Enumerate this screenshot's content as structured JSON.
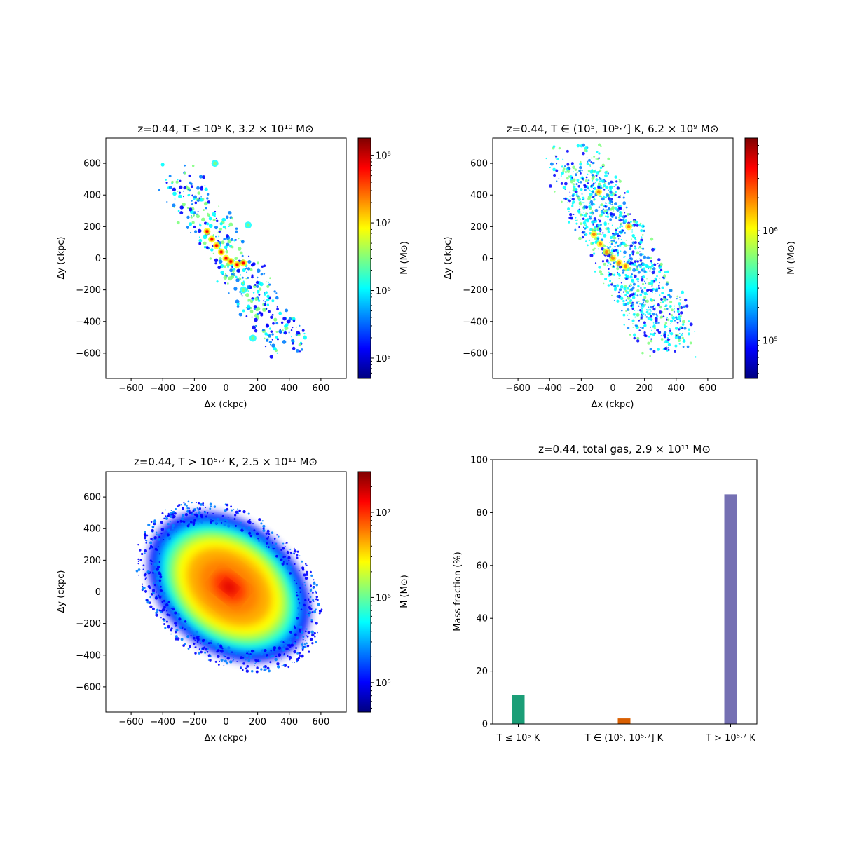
{
  "colors": {
    "jet": [
      "#00007f",
      "#0000ff",
      "#007fff",
      "#00ffff",
      "#7fff7f",
      "#ffff00",
      "#ff7f00",
      "#ff0000",
      "#7f0000"
    ],
    "bars": [
      "#1b9e77",
      "#d95f02",
      "#7570b3"
    ]
  },
  "chart_data": [
    {
      "type": "heatmap",
      "title": "z=0.44, T ≤ 10⁵ K, 3.2 × 10¹⁰ M⊙",
      "xlabel": "Δx (ckpc)",
      "ylabel": "Δy (ckpc)",
      "xlim": [
        -760,
        760
      ],
      "ylim": [
        -760,
        760
      ],
      "xticks": [
        -600,
        -400,
        -200,
        0,
        200,
        400,
        600
      ],
      "yticks": [
        -600,
        -400,
        -200,
        0,
        200,
        400,
        600
      ],
      "colorbar": {
        "label": "M (M⊙)",
        "scale": "log",
        "range": [
          50000,
          180000000
        ],
        "ticks": [
          {
            "value": 100000,
            "label": "10⁵"
          },
          {
            "value": 1000000,
            "label": "10⁶"
          },
          {
            "value": 10000000,
            "label": "10⁷"
          },
          {
            "value": 100000000,
            "label": "10⁸"
          }
        ]
      },
      "distribution": "sparse filamentary clumps along a diagonal bar through the centre"
    },
    {
      "type": "heatmap",
      "title": "z=0.44, T ∈ (10⁵, 10⁵·⁷] K, 6.2 × 10⁹ M⊙",
      "xlabel": "Δx (ckpc)",
      "ylabel": "Δy (ckpc)",
      "xlim": [
        -760,
        760
      ],
      "ylim": [
        -760,
        760
      ],
      "xticks": [
        -600,
        -400,
        -200,
        0,
        200,
        400,
        600
      ],
      "yticks": [
        -600,
        -400,
        -200,
        0,
        200,
        400,
        600
      ],
      "colorbar": {
        "label": "M (M⊙)",
        "scale": "log",
        "range": [
          45000,
          7000000
        ],
        "ticks": [
          {
            "value": 100000,
            "label": "10⁵"
          },
          {
            "value": 1000000,
            "label": "10⁶"
          }
        ]
      },
      "distribution": "extended patchy filaments along the diagonal bar"
    },
    {
      "type": "heatmap",
      "title": "z=0.44, T > 10⁵·⁷ K, 2.5 × 10¹¹ M⊙",
      "xlabel": "Δx (ckpc)",
      "ylabel": "Δy (ckpc)",
      "xlim": [
        -760,
        760
      ],
      "ylim": [
        -760,
        760
      ],
      "xticks": [
        -600,
        -400,
        -200,
        0,
        200,
        400,
        600
      ],
      "yticks": [
        -600,
        -400,
        -200,
        0,
        200,
        400,
        600
      ],
      "colorbar": {
        "label": "M (M⊙)",
        "scale": "log",
        "range": [
          45000,
          30000000
        ],
        "ticks": [
          {
            "value": 100000,
            "label": "10⁵"
          },
          {
            "value": 1000000,
            "label": "10⁶"
          },
          {
            "value": 10000000,
            "label": "10⁷"
          }
        ]
      },
      "distribution": "large filled elliptical halo with peak at the centre"
    },
    {
      "type": "bar",
      "title": "z=0.44, total gas, 2.9 × 10¹¹ M⊙",
      "categories": [
        "T ≤ 10⁵ K",
        "T ∈ (10⁵, 10⁵·⁷] K",
        "T > 10⁵·⁷ K"
      ],
      "values": [
        11.0,
        2.1,
        86.9
      ],
      "ylabel": "Mass fraction (%)",
      "xlabel": "",
      "ylim": [
        0,
        100
      ],
      "yticks": [
        0,
        20,
        40,
        60,
        80,
        100
      ]
    }
  ]
}
